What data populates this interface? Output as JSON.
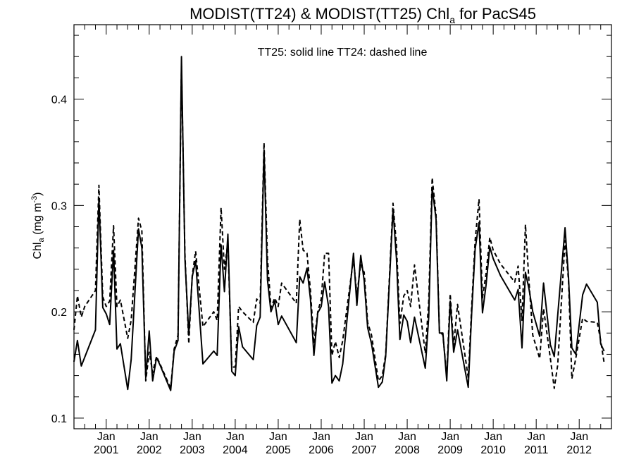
{
  "chart_data": {
    "type": "line",
    "title_main": "MODIST(TT24) & MODIST(TT25)  Chl",
    "title_sub": "a",
    "title_tail": " for PacS45",
    "ylabel_main": "Chl",
    "ylabel_sub": "a",
    "ylabel_unit": " (mg m",
    "ylabel_exp": "-3",
    "ylabel_close": ")",
    "annotation": "TT25: solid line   TT24: dashed line",
    "ylim": [
      0.09,
      0.47
    ],
    "xlim": [
      2000.25,
      2012.75
    ],
    "yticks": [
      {
        "value": 0.1,
        "label": "0.1"
      },
      {
        "value": 0.2,
        "label": "0.2"
      },
      {
        "value": 0.3,
        "label": "0.3"
      },
      {
        "value": 0.4,
        "label": "0.4"
      }
    ],
    "xticks": [
      {
        "value": 2001,
        "month": "Jan",
        "year": "2001"
      },
      {
        "value": 2002,
        "month": "Jan",
        "year": "2002"
      },
      {
        "value": 2003,
        "month": "Jan",
        "year": "2003"
      },
      {
        "value": 2004,
        "month": "Jan",
        "year": "2004"
      },
      {
        "value": 2005,
        "month": "Jan",
        "year": "2005"
      },
      {
        "value": 2006,
        "month": "Jan",
        "year": "2006"
      },
      {
        "value": 2007,
        "month": "Jan",
        "year": "2007"
      },
      {
        "value": 2008,
        "month": "Jan",
        "year": "2008"
      },
      {
        "value": 2009,
        "month": "Jan",
        "year": "2009"
      },
      {
        "value": 2010,
        "month": "Jan",
        "year": "2010"
      },
      {
        "value": 2011,
        "month": "Jan",
        "year": "2011"
      },
      {
        "value": 2012,
        "month": "Jan",
        "year": "2012"
      }
    ],
    "series": [
      {
        "name": "TT25",
        "style": "solid",
        "color": "#000000",
        "points": [
          [
            2000.25,
            0.153
          ],
          [
            2000.33,
            0.173
          ],
          [
            2000.42,
            0.149
          ],
          [
            2000.75,
            0.183
          ],
          [
            2000.83,
            0.307
          ],
          [
            2000.92,
            0.204
          ],
          [
            2001.0,
            0.198
          ],
          [
            2001.08,
            0.188
          ],
          [
            2001.17,
            0.258
          ],
          [
            2001.25,
            0.165
          ],
          [
            2001.33,
            0.17
          ],
          [
            2001.5,
            0.127
          ],
          [
            2001.58,
            0.155
          ],
          [
            2001.75,
            0.278
          ],
          [
            2001.83,
            0.26
          ],
          [
            2001.92,
            0.138
          ],
          [
            2002.0,
            0.182
          ],
          [
            2002.08,
            0.135
          ],
          [
            2002.17,
            0.157
          ],
          [
            2002.25,
            0.15
          ],
          [
            2002.5,
            0.126
          ],
          [
            2002.58,
            0.163
          ],
          [
            2002.67,
            0.173
          ],
          [
            2002.75,
            0.44
          ],
          [
            2002.83,
            0.25
          ],
          [
            2002.92,
            0.178
          ],
          [
            2003.0,
            0.233
          ],
          [
            2003.08,
            0.248
          ],
          [
            2003.25,
            0.151
          ],
          [
            2003.5,
            0.163
          ],
          [
            2003.58,
            0.159
          ],
          [
            2003.67,
            0.263
          ],
          [
            2003.75,
            0.219
          ],
          [
            2003.83,
            0.273
          ],
          [
            2003.92,
            0.144
          ],
          [
            2004.0,
            0.14
          ],
          [
            2004.08,
            0.186
          ],
          [
            2004.17,
            0.167
          ],
          [
            2004.42,
            0.155
          ],
          [
            2004.5,
            0.187
          ],
          [
            2004.58,
            0.195
          ],
          [
            2004.67,
            0.352
          ],
          [
            2004.75,
            0.23
          ],
          [
            2004.83,
            0.2
          ],
          [
            2004.92,
            0.21
          ],
          [
            2005.0,
            0.188
          ],
          [
            2005.08,
            0.196
          ],
          [
            2005.42,
            0.171
          ],
          [
            2005.5,
            0.233
          ],
          [
            2005.58,
            0.227
          ],
          [
            2005.67,
            0.241
          ],
          [
            2005.75,
            0.212
          ],
          [
            2005.83,
            0.159
          ],
          [
            2005.92,
            0.199
          ],
          [
            2006.0,
            0.205
          ],
          [
            2006.08,
            0.228
          ],
          [
            2006.17,
            0.205
          ],
          [
            2006.25,
            0.133
          ],
          [
            2006.33,
            0.14
          ],
          [
            2006.42,
            0.135
          ],
          [
            2006.5,
            0.151
          ],
          [
            2006.75,
            0.255
          ],
          [
            2006.83,
            0.206
          ],
          [
            2006.92,
            0.253
          ],
          [
            2007.0,
            0.229
          ],
          [
            2007.08,
            0.185
          ],
          [
            2007.17,
            0.17
          ],
          [
            2007.33,
            0.129
          ],
          [
            2007.42,
            0.134
          ],
          [
            2007.5,
            0.158
          ],
          [
            2007.67,
            0.296
          ],
          [
            2007.75,
            0.25
          ],
          [
            2007.83,
            0.174
          ],
          [
            2007.92,
            0.197
          ],
          [
            2008.0,
            0.191
          ],
          [
            2008.08,
            0.171
          ],
          [
            2008.17,
            0.195
          ],
          [
            2008.42,
            0.147
          ],
          [
            2008.5,
            0.195
          ],
          [
            2008.58,
            0.317
          ],
          [
            2008.67,
            0.287
          ],
          [
            2008.75,
            0.18
          ],
          [
            2008.83,
            0.18
          ],
          [
            2008.92,
            0.135
          ],
          [
            2009.0,
            0.21
          ],
          [
            2009.08,
            0.162
          ],
          [
            2009.17,
            0.183
          ],
          [
            2009.42,
            0.129
          ],
          [
            2009.5,
            0.199
          ],
          [
            2009.58,
            0.259
          ],
          [
            2009.67,
            0.284
          ],
          [
            2009.75,
            0.199
          ],
          [
            2009.83,
            0.224
          ],
          [
            2009.92,
            0.261
          ],
          [
            2010.0,
            0.25
          ],
          [
            2010.17,
            0.234
          ],
          [
            2010.5,
            0.211
          ],
          [
            2010.58,
            0.221
          ],
          [
            2010.67,
            0.166
          ],
          [
            2010.75,
            0.237
          ],
          [
            2010.83,
            0.222
          ],
          [
            2010.92,
            0.2
          ],
          [
            2011.08,
            0.177
          ],
          [
            2011.17,
            0.227
          ],
          [
            2011.33,
            0.169
          ],
          [
            2011.42,
            0.158
          ],
          [
            2011.67,
            0.279
          ],
          [
            2011.75,
            0.233
          ],
          [
            2011.83,
            0.166
          ],
          [
            2011.92,
            0.16
          ],
          [
            2012.08,
            0.216
          ],
          [
            2012.17,
            0.226
          ],
          [
            2012.42,
            0.209
          ],
          [
            2012.5,
            0.17
          ],
          [
            2012.58,
            0.163
          ]
        ]
      },
      {
        "name": "TT24",
        "style": "dashed",
        "color": "#000000",
        "points": [
          [
            2000.25,
            0.183
          ],
          [
            2000.33,
            0.215
          ],
          [
            2000.42,
            0.195
          ],
          [
            2000.5,
            0.205
          ],
          [
            2000.75,
            0.22
          ],
          [
            2000.83,
            0.319
          ],
          [
            2000.92,
            0.214
          ],
          [
            2001.0,
            0.205
          ],
          [
            2001.08,
            0.21
          ],
          [
            2001.17,
            0.281
          ],
          [
            2001.25,
            0.205
          ],
          [
            2001.33,
            0.211
          ],
          [
            2001.5,
            0.175
          ],
          [
            2001.58,
            0.192
          ],
          [
            2001.75,
            0.288
          ],
          [
            2001.83,
            0.276
          ],
          [
            2001.92,
            0.135
          ],
          [
            2002.0,
            0.162
          ],
          [
            2002.08,
            0.143
          ],
          [
            2002.17,
            0.158
          ],
          [
            2002.25,
            0.151
          ],
          [
            2002.5,
            0.128
          ],
          [
            2002.58,
            0.165
          ],
          [
            2002.67,
            0.178
          ],
          [
            2002.75,
            0.431
          ],
          [
            2002.83,
            0.255
          ],
          [
            2002.92,
            0.17
          ],
          [
            2003.0,
            0.234
          ],
          [
            2003.08,
            0.257
          ],
          [
            2003.25,
            0.186
          ],
          [
            2003.5,
            0.2
          ],
          [
            2003.58,
            0.192
          ],
          [
            2003.67,
            0.298
          ],
          [
            2003.75,
            0.24
          ],
          [
            2003.83,
            0.265
          ],
          [
            2003.92,
            0.148
          ],
          [
            2004.0,
            0.148
          ],
          [
            2004.08,
            0.205
          ],
          [
            2004.17,
            0.2
          ],
          [
            2004.42,
            0.19
          ],
          [
            2004.5,
            0.212
          ],
          [
            2004.58,
            0.208
          ],
          [
            2004.67,
            0.359
          ],
          [
            2004.75,
            0.25
          ],
          [
            2004.83,
            0.204
          ],
          [
            2004.92,
            0.213
          ],
          [
            2005.0,
            0.205
          ],
          [
            2005.08,
            0.227
          ],
          [
            2005.42,
            0.208
          ],
          [
            2005.5,
            0.287
          ],
          [
            2005.58,
            0.258
          ],
          [
            2005.67,
            0.255
          ],
          [
            2005.75,
            0.22
          ],
          [
            2005.83,
            0.17
          ],
          [
            2005.92,
            0.2
          ],
          [
            2006.0,
            0.212
          ],
          [
            2006.08,
            0.255
          ],
          [
            2006.17,
            0.255
          ],
          [
            2006.25,
            0.159
          ],
          [
            2006.33,
            0.172
          ],
          [
            2006.42,
            0.157
          ],
          [
            2006.5,
            0.173
          ],
          [
            2006.75,
            0.25
          ],
          [
            2006.83,
            0.216
          ],
          [
            2006.92,
            0.245
          ],
          [
            2007.0,
            0.237
          ],
          [
            2007.08,
            0.19
          ],
          [
            2007.17,
            0.178
          ],
          [
            2007.33,
            0.135
          ],
          [
            2007.42,
            0.14
          ],
          [
            2007.5,
            0.16
          ],
          [
            2007.67,
            0.302
          ],
          [
            2007.75,
            0.263
          ],
          [
            2007.83,
            0.189
          ],
          [
            2007.92,
            0.215
          ],
          [
            2008.0,
            0.22
          ],
          [
            2008.08,
            0.205
          ],
          [
            2008.17,
            0.244
          ],
          [
            2008.42,
            0.161
          ],
          [
            2008.5,
            0.21
          ],
          [
            2008.58,
            0.326
          ],
          [
            2008.67,
            0.291
          ],
          [
            2008.75,
            0.182
          ],
          [
            2008.83,
            0.178
          ],
          [
            2008.92,
            0.14
          ],
          [
            2009.0,
            0.217
          ],
          [
            2009.08,
            0.168
          ],
          [
            2009.17,
            0.207
          ],
          [
            2009.42,
            0.138
          ],
          [
            2009.5,
            0.205
          ],
          [
            2009.58,
            0.267
          ],
          [
            2009.67,
            0.306
          ],
          [
            2009.75,
            0.213
          ],
          [
            2009.83,
            0.235
          ],
          [
            2009.92,
            0.27
          ],
          [
            2010.0,
            0.258
          ],
          [
            2010.17,
            0.245
          ],
          [
            2010.5,
            0.228
          ],
          [
            2010.58,
            0.243
          ],
          [
            2010.67,
            0.192
          ],
          [
            2010.75,
            0.282
          ],
          [
            2010.83,
            0.23
          ],
          [
            2010.92,
            0.178
          ],
          [
            2011.08,
            0.156
          ],
          [
            2011.17,
            0.203
          ],
          [
            2011.33,
            0.156
          ],
          [
            2011.42,
            0.128
          ],
          [
            2011.5,
            0.15
          ],
          [
            2011.67,
            0.267
          ],
          [
            2011.75,
            0.23
          ],
          [
            2011.83,
            0.137
          ],
          [
            2011.92,
            0.156
          ],
          [
            2012.08,
            0.194
          ],
          [
            2012.17,
            0.191
          ],
          [
            2012.42,
            0.19
          ],
          [
            2012.5,
            0.173
          ],
          [
            2012.58,
            0.152
          ]
        ]
      }
    ]
  }
}
